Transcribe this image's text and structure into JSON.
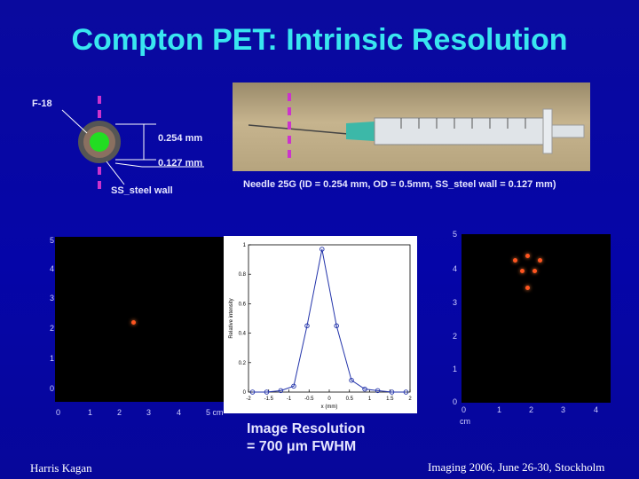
{
  "title": "Compton PET: Intrinsic Resolution",
  "diagram": {
    "source_label": "F-18",
    "dim_id": "0.254 mm",
    "dim_wall": "0.127 mm",
    "wall_label": "SS_steel wall",
    "needle_caption": "Needle 25G (ID = 0.254 mm, OD = 0.5mm, SS_steel wall = 0.127 mm)"
  },
  "left_image": {
    "y_ticks": [
      "5",
      "4",
      "3",
      "2",
      "1",
      "0"
    ],
    "x_ticks": [
      "0",
      "1",
      "2",
      "3",
      "4",
      "5 cm"
    ]
  },
  "right_image": {
    "y_ticks": [
      "5",
      "4",
      "3",
      "2",
      "1",
      "0"
    ],
    "x_ticks": [
      "0",
      "1",
      "2",
      "3",
      "4"
    ],
    "x_unit": "cm"
  },
  "chart_data": {
    "type": "line",
    "xlabel": "x (mm)",
    "ylabel": "Relative intensity",
    "xlim": [
      -2,
      2
    ],
    "ylim": [
      0,
      1
    ],
    "x_ticks": [
      "-2",
      "-1.5",
      "-1",
      "-0.5",
      "0",
      "0.5",
      "1",
      "1.5",
      "2"
    ],
    "y_ticks": [
      "0",
      "0.2",
      "0.4",
      "0.6",
      "0.8",
      "1"
    ],
    "grid": false,
    "series": [
      {
        "color": "#2233aa",
        "x": [
          -1.9,
          -1.55,
          -1.2,
          -0.88,
          -0.55,
          -0.18,
          0.18,
          0.55,
          0.88,
          1.2,
          1.55,
          1.9
        ],
        "y": [
          0.0,
          0.0,
          0.01,
          0.04,
          0.45,
          0.97,
          0.45,
          0.08,
          0.02,
          0.01,
          0.0,
          0.0
        ]
      }
    ]
  },
  "resolution": {
    "line1": "Image Resolution",
    "line2": "= 700 μm FWHM"
  },
  "footer": {
    "author": "Harris Kagan",
    "conference": "Imaging 2006, June 26-30, Stockholm"
  },
  "colors": {
    "title": "#39e6f0",
    "marker_magenta": "#cc33cc",
    "source_green": "#22dd22",
    "hotspot": "#ff5520"
  }
}
